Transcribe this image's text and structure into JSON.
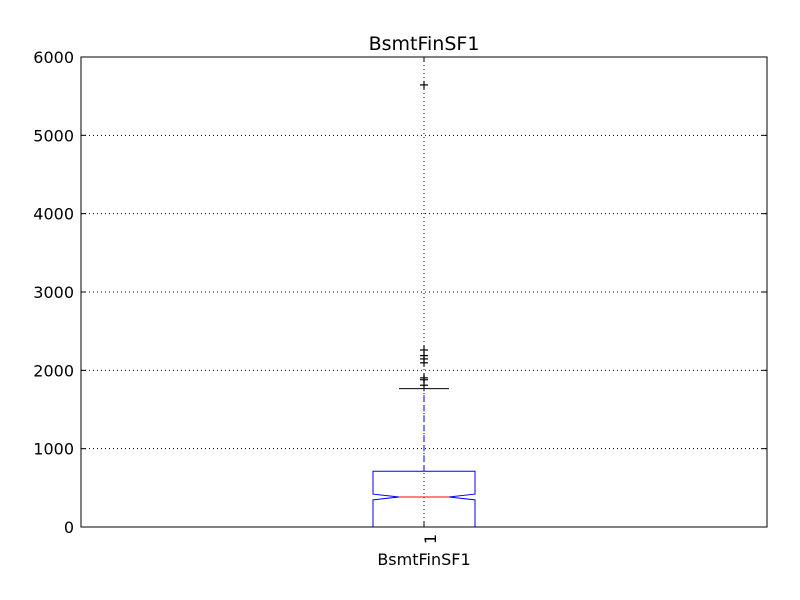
{
  "chart_data": {
    "type": "boxplot",
    "title": "BsmtFinSF1",
    "xlabel": "BsmtFinSF1",
    "ylabel": "",
    "ylim": [
      0,
      6000
    ],
    "yticks": [
      0,
      1000,
      2000,
      3000,
      4000,
      5000,
      6000
    ],
    "xtick_labels": [
      "1"
    ],
    "grid": true,
    "notched": true,
    "series": [
      {
        "category": "1",
        "min": 0,
        "q1": 0,
        "median": 383.5,
        "q3": 712.25,
        "whisker_low": 0,
        "whisker_high": 1767,
        "notch_low": 347,
        "notch_high": 420,
        "outliers": [
          1810,
          1880,
          1904,
          2096,
          2146,
          2188,
          2260,
          5644
        ]
      }
    ],
    "colors": {
      "box": "#0000ff",
      "median": "#ff0000",
      "whisker": "#0000ff",
      "cap": "#000000",
      "flier": "#000000",
      "grid": "#000000"
    }
  }
}
